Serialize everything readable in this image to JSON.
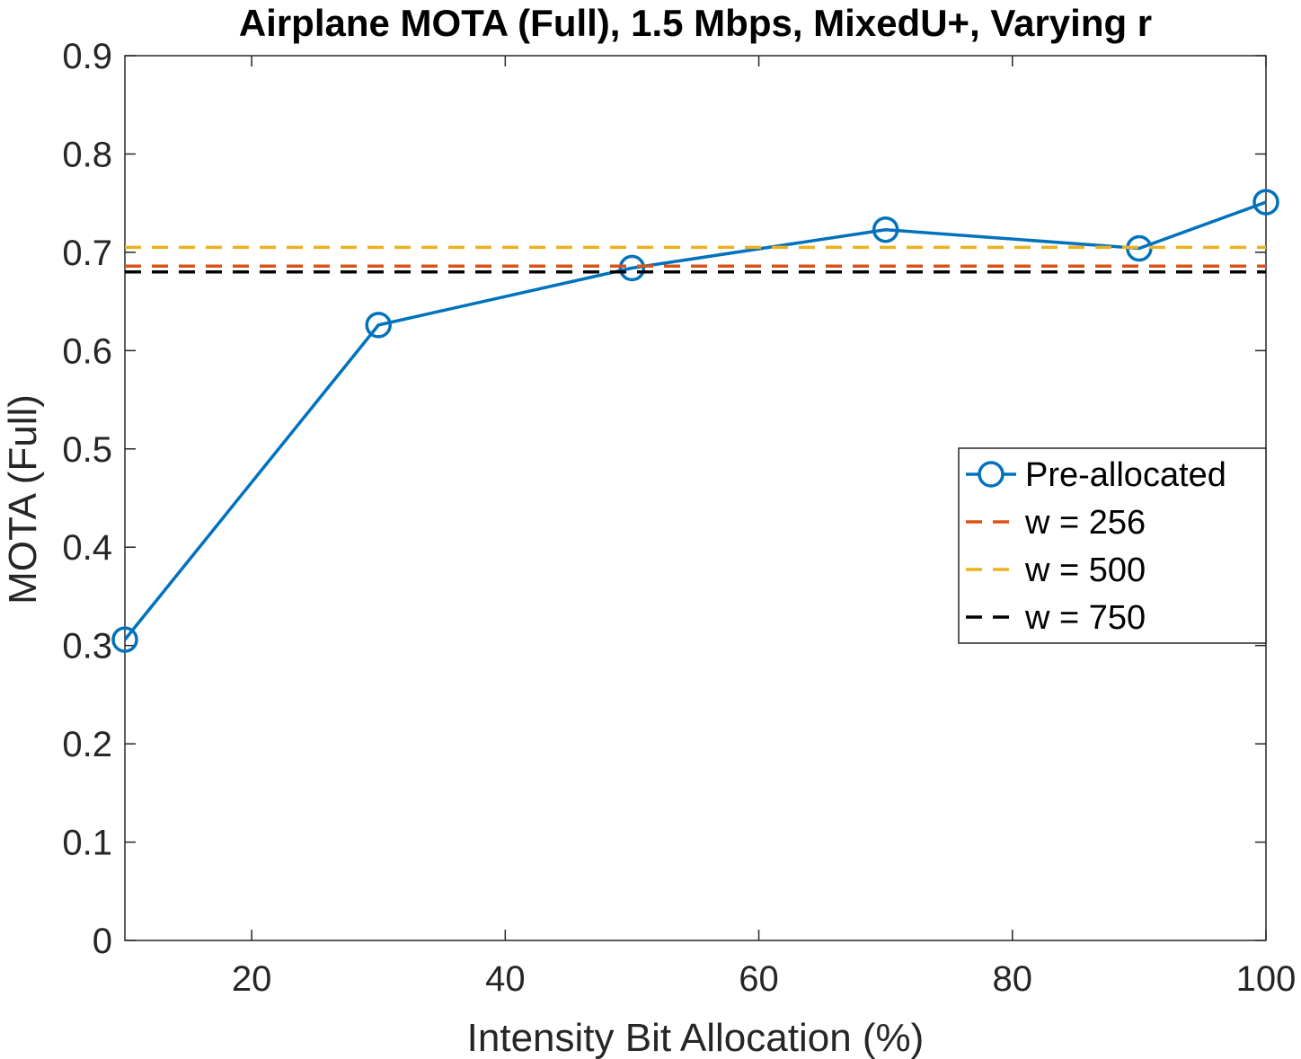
{
  "chart_data": {
    "type": "line",
    "title": "Airplane MOTA (Full), 1.5 Mbps, MixedU+, Varying r",
    "xlabel": "Intensity Bit Allocation (%)",
    "ylabel": "MOTA (Full)",
    "xlim": [
      10,
      100
    ],
    "ylim": [
      0,
      0.9
    ],
    "xticks": [
      20,
      40,
      60,
      80,
      100
    ],
    "xtick_labels": [
      "20",
      "40",
      "60",
      "80",
      "100"
    ],
    "yticks": [
      0,
      0.1,
      0.2,
      0.3,
      0.4,
      0.5,
      0.6,
      0.7,
      0.8,
      0.9
    ],
    "ytick_labels": [
      "0",
      "0.1",
      "0.2",
      "0.3",
      "0.4",
      "0.5",
      "0.6",
      "0.7",
      "0.8",
      "0.9"
    ],
    "grid": false,
    "legend_position": "right",
    "series": [
      {
        "name": "Pre-allocated",
        "style": "solid-circle",
        "color": "#0072BD",
        "x": [
          10,
          30,
          50,
          70,
          90,
          100
        ],
        "y": [
          0.306,
          0.626,
          0.684,
          0.723,
          0.704,
          0.751
        ]
      },
      {
        "name": "w = 256",
        "style": "dashed",
        "color": "#D95319",
        "x": [
          10,
          100
        ],
        "y": [
          0.686,
          0.686
        ]
      },
      {
        "name": "w = 500",
        "style": "dashed",
        "color": "#EDB120",
        "x": [
          10,
          100
        ],
        "y": [
          0.705,
          0.705
        ]
      },
      {
        "name": "w = 750",
        "style": "dashed",
        "color": "#000000",
        "x": [
          10,
          100
        ],
        "y": [
          0.68,
          0.68
        ]
      }
    ]
  }
}
